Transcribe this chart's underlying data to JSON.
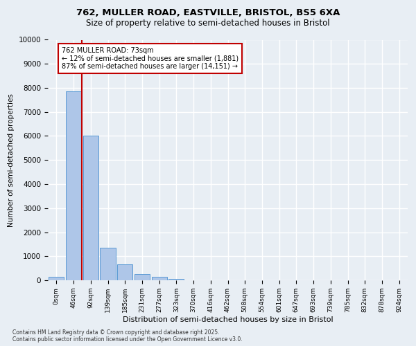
{
  "title_line1": "762, MULLER ROAD, EASTVILLE, BRISTOL, BS5 6XA",
  "title_line2": "Size of property relative to semi-detached houses in Bristol",
  "xlabel": "Distribution of semi-detached houses by size in Bristol",
  "ylabel": "Number of semi-detached properties",
  "footer": "Contains HM Land Registry data © Crown copyright and database right 2025.\nContains public sector information licensed under the Open Government Licence v3.0.",
  "bin_labels": [
    "0sqm",
    "46sqm",
    "92sqm",
    "139sqm",
    "185sqm",
    "231sqm",
    "277sqm",
    "323sqm",
    "370sqm",
    "416sqm",
    "462sqm",
    "508sqm",
    "554sqm",
    "601sqm",
    "647sqm",
    "693sqm",
    "739sqm",
    "785sqm",
    "832sqm",
    "878sqm",
    "924sqm"
  ],
  "bar_values": [
    150,
    7850,
    6000,
    1350,
    650,
    250,
    150,
    60,
    10,
    0,
    0,
    0,
    0,
    0,
    0,
    0,
    0,
    0,
    0,
    0,
    0
  ],
  "bar_color": "#aec6e8",
  "bar_edge_color": "#5b9bd5",
  "background_color": "#e8eef4",
  "plot_bg_color": "#e8eef4",
  "grid_color": "#ffffff",
  "vline_x": 1.5,
  "vline_color": "#c00000",
  "annotation_text": "762 MULLER ROAD: 73sqm\n← 12% of semi-detached houses are smaller (1,881)\n87% of semi-detached houses are larger (14,151) →",
  "annotation_box_color": "#ffffff",
  "annotation_box_edge": "#c00000",
  "ylim": [
    0,
    10000
  ],
  "yticks": [
    0,
    1000,
    2000,
    3000,
    4000,
    5000,
    6000,
    7000,
    8000,
    9000,
    10000
  ]
}
